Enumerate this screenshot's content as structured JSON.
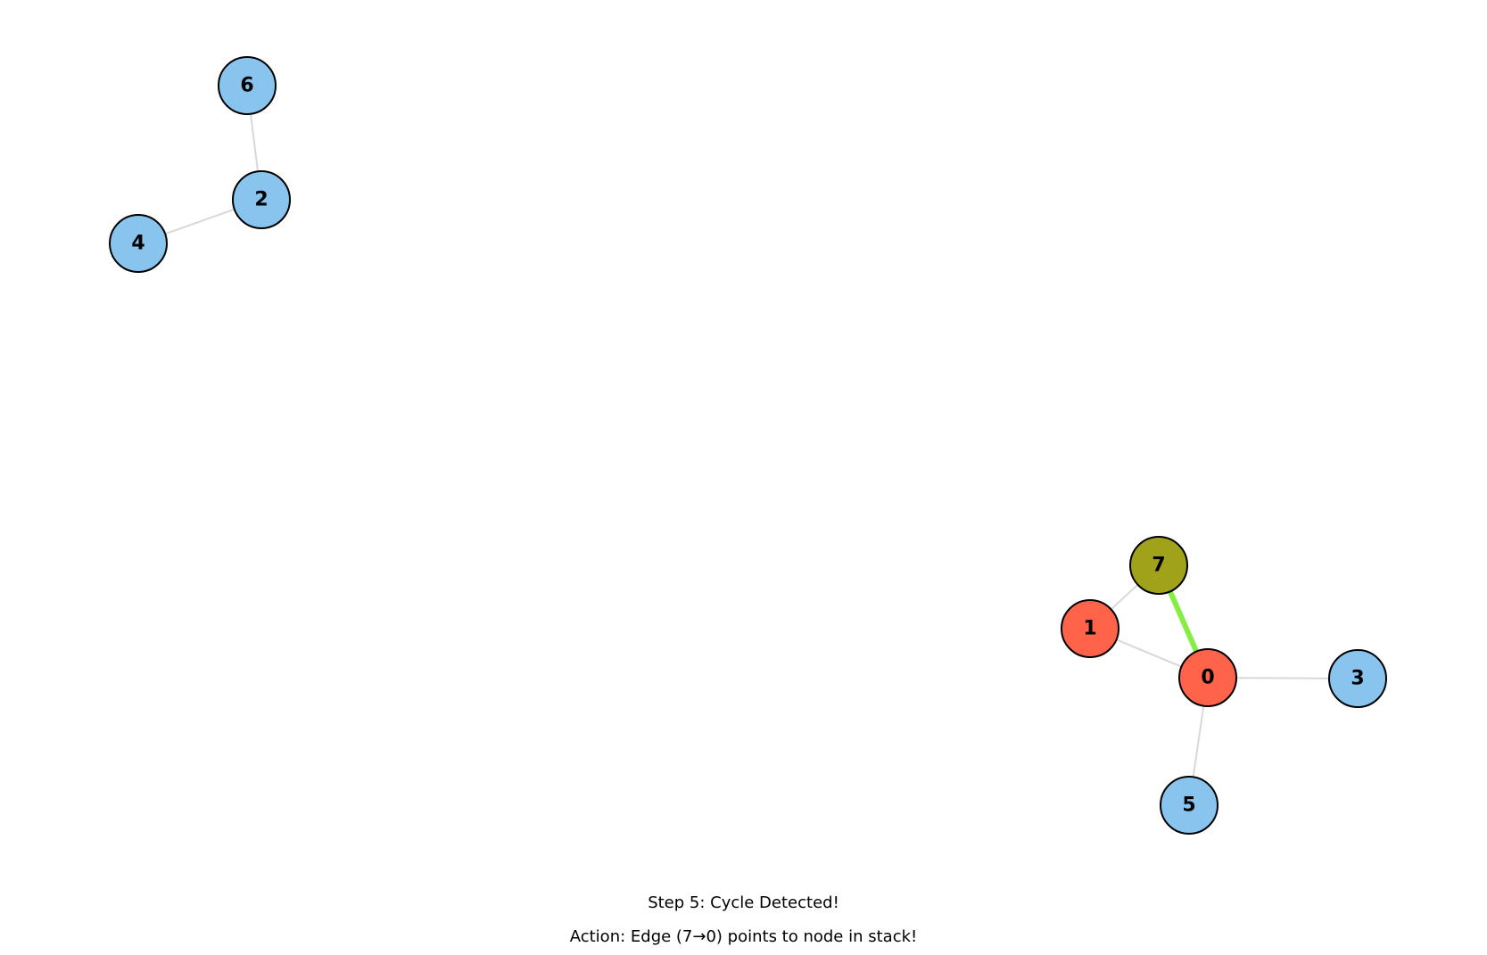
{
  "graph": {
    "nodes": [
      {
        "id": "0",
        "label": "0",
        "state": "in_stack"
      },
      {
        "id": "1",
        "label": "1",
        "state": "in_stack"
      },
      {
        "id": "2",
        "label": "2",
        "state": "unvisited"
      },
      {
        "id": "3",
        "label": "3",
        "state": "unvisited"
      },
      {
        "id": "4",
        "label": "4",
        "state": "unvisited"
      },
      {
        "id": "5",
        "label": "5",
        "state": "unvisited"
      },
      {
        "id": "6",
        "label": "6",
        "state": "unvisited"
      },
      {
        "id": "7",
        "label": "7",
        "state": "current"
      }
    ],
    "edges": [
      {
        "source": "6",
        "target": "2",
        "highlighted": false
      },
      {
        "source": "2",
        "target": "4",
        "highlighted": false
      },
      {
        "source": "7",
        "target": "1",
        "highlighted": false
      },
      {
        "source": "1",
        "target": "0",
        "highlighted": false
      },
      {
        "source": "7",
        "target": "0",
        "highlighted": true
      },
      {
        "source": "0",
        "target": "3",
        "highlighted": false
      },
      {
        "source": "0",
        "target": "5",
        "highlighted": false
      }
    ]
  },
  "colors": {
    "unvisited": "#89c4ee",
    "in_stack": "#ff644b",
    "current": "#a0a21a",
    "edge": "#d8d8d8",
    "highlighted_edge": "#86ee43",
    "node_border": "#000000"
  },
  "caption": {
    "title": "Step 5: Cycle Detected!",
    "action": "Action: Edge (7→0) points to node in stack!"
  }
}
